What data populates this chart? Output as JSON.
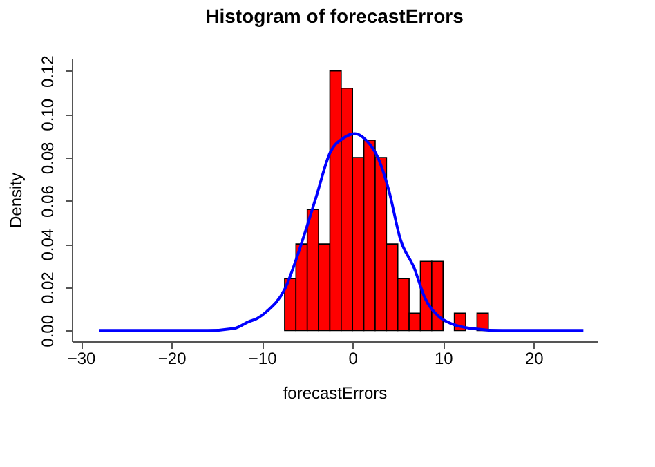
{
  "chart_data": {
    "type": "histogram",
    "title": "Histogram of forecastErrors",
    "xlabel": "forecastErrors",
    "ylabel": "Density",
    "bins": [
      -7.5,
      -6.25,
      -5,
      -3.75,
      -2.5,
      -1.25,
      0,
      1.25,
      2.5,
      3.75,
      5,
      6.25,
      7.5,
      8.75,
      10,
      11.25,
      12.5,
      13.75,
      15
    ],
    "values": [
      0.024,
      0.04,
      0.056,
      0.04,
      0.12,
      0.112,
      0.08,
      0.088,
      0.08,
      0.04,
      0.024,
      0.008,
      0.032,
      0.032,
      0,
      0.008,
      0,
      0.008
    ],
    "color": "#ff0000",
    "series": [
      {
        "type": "line",
        "color": "#0000ff",
        "x": [
          -28,
          -20,
          -16,
          -13,
          -11.5,
          -10.5,
          -9.5,
          -7.5,
          -5.5,
          -4,
          -2.5,
          -1,
          0.25,
          1.5,
          2.8,
          4,
          5.3,
          6.8,
          8,
          9.5,
          11,
          13,
          16.5,
          20,
          25.5
        ],
        "values": [
          0,
          0,
          0,
          0.001,
          0.004,
          0.0056,
          0.0087,
          0.019,
          0.042,
          0.062,
          0.082,
          0.089,
          0.091,
          0.088,
          0.08,
          0.065,
          0.042,
          0.029,
          0.015,
          0.0066,
          0.003,
          0.001,
          0,
          0,
          0
        ]
      }
    ],
    "xlim": [
      -31,
      27
    ],
    "xticks": [
      -30,
      -20,
      -10,
      0,
      10,
      20
    ],
    "ylim": [
      -0.005,
      0.126
    ],
    "yticks": [
      {
        "value": 0,
        "label": "0.00"
      },
      {
        "value": 0.02,
        "label": "0.02"
      },
      {
        "value": 0.04,
        "label": "0.04"
      },
      {
        "value": 0.06,
        "label": "0.06"
      },
      {
        "value": 0.08,
        "label": "0.08"
      },
      {
        "value": 0.1,
        "label": "0.10"
      },
      {
        "value": 0.12,
        "label": "0.12"
      }
    ],
    "grid": false
  }
}
